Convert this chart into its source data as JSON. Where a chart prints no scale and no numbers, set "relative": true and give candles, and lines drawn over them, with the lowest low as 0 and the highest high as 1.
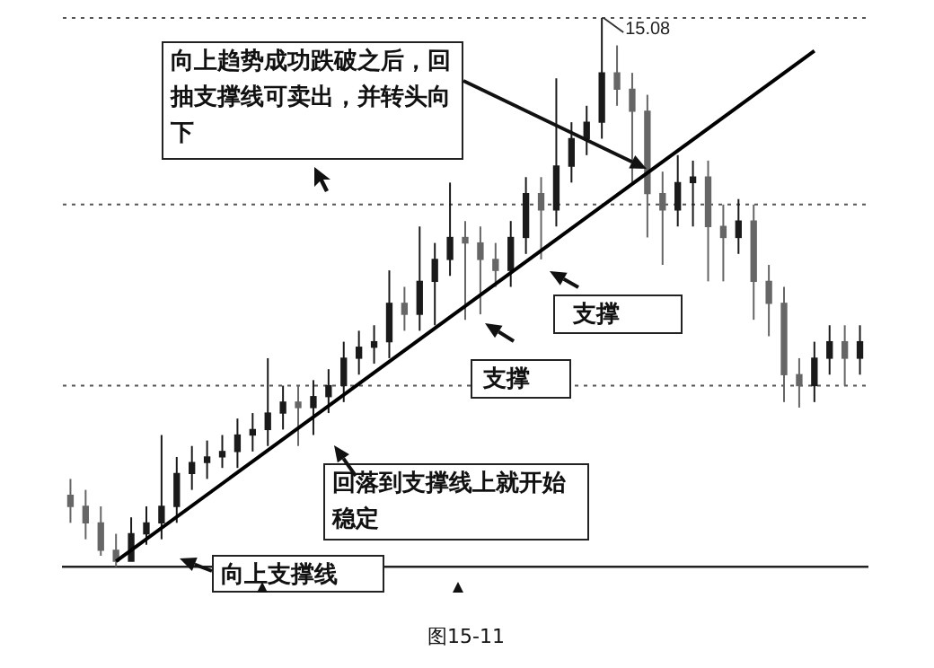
{
  "chart_data": {
    "type": "candlestick",
    "relative": true,
    "categories": [
      null,
      null,
      null,
      null,
      null,
      null,
      null,
      null,
      null,
      null,
      null,
      null,
      null,
      null,
      null,
      null,
      null,
      null,
      null,
      null,
      null,
      null,
      null,
      null,
      null,
      null,
      null,
      null,
      null,
      null,
      null,
      null,
      null,
      null,
      null,
      null,
      null,
      null,
      null,
      null,
      null,
      null,
      null,
      null,
      null,
      null,
      null,
      null,
      null,
      null,
      null,
      null,
      null
    ],
    "series": [
      {
        "colors": [
          "#666666",
          "#666666",
          "#666666",
          "#666666",
          "#1a1a1a",
          "#1a1a1a",
          "#1a1a1a",
          "#1a1a1a",
          "#1a1a1a",
          "#1a1a1a",
          "#1a1a1a",
          "#1a1a1a",
          "#1a1a1a",
          "#1a1a1a",
          "#1a1a1a",
          "#666666",
          "#1a1a1a",
          "#1a1a1a",
          "#1a1a1a",
          "#1a1a1a",
          "#1a1a1a",
          "#1a1a1a",
          "#666666",
          "#1a1a1a",
          "#1a1a1a",
          "#1a1a1a",
          "#666666",
          "#666666",
          "#666666",
          "#1a1a1a",
          "#1a1a1a",
          "#666666",
          "#1a1a1a",
          "#1a1a1a",
          "#1a1a1a",
          "#1a1a1a",
          "#666666",
          "#666666",
          "#666666",
          "#666666",
          "#1a1a1a",
          "#1a1a1a",
          "#666666",
          "#666666",
          "#1a1a1a",
          "#666666",
          "#666666",
          "#666666",
          "#666666",
          "#1a1a1a",
          "#1a1a1a",
          "#666666",
          "#1a1a1a"
        ],
        "ohlc": [
          [
            0.13,
            0.16,
            0.08,
            0.11
          ],
          [
            0.11,
            0.14,
            0.05,
            0.08
          ],
          [
            0.08,
            0.11,
            0.02,
            0.03
          ],
          [
            0.03,
            0.06,
            0,
            0.01
          ],
          [
            0.01,
            0.09,
            0.01,
            0.06
          ],
          [
            0.06,
            0.11,
            0.04,
            0.08
          ],
          [
            0.08,
            0.24,
            0.05,
            0.11
          ],
          [
            0.11,
            0.2,
            0.08,
            0.17
          ],
          [
            0.17,
            0.22,
            0.14,
            0.19
          ],
          [
            0.19,
            0.23,
            0.16,
            0.2
          ],
          [
            0.2,
            0.24,
            0.18,
            0.21
          ],
          [
            0.21,
            0.27,
            0.18,
            0.24
          ],
          [
            0.24,
            0.28,
            0.21,
            0.25
          ],
          [
            0.25,
            0.38,
            0.22,
            0.28
          ],
          [
            0.28,
            0.33,
            0.25,
            0.3
          ],
          [
            0.3,
            0.33,
            0.22,
            0.29
          ],
          [
            0.29,
            0.34,
            0.24,
            0.31
          ],
          [
            0.31,
            0.36,
            0.28,
            0.33
          ],
          [
            0.33,
            0.41,
            0.3,
            0.38
          ],
          [
            0.38,
            0.43,
            0.35,
            0.4
          ],
          [
            0.4,
            0.44,
            0.37,
            0.41
          ],
          [
            0.41,
            0.54,
            0.38,
            0.48
          ],
          [
            0.48,
            0.51,
            0.43,
            0.46
          ],
          [
            0.46,
            0.62,
            0.43,
            0.52
          ],
          [
            0.52,
            0.59,
            0.44,
            0.56
          ],
          [
            0.56,
            0.7,
            0.53,
            0.6
          ],
          [
            0.6,
            0.63,
            0.45,
            0.59
          ],
          [
            0.59,
            0.62,
            0.46,
            0.56
          ],
          [
            0.56,
            0.59,
            0.51,
            0.54
          ],
          [
            0.54,
            0.63,
            0.51,
            0.6
          ],
          [
            0.6,
            0.71,
            0.57,
            0.68
          ],
          [
            0.68,
            0.71,
            0.56,
            0.65
          ],
          [
            0.65,
            0.89,
            0.62,
            0.73
          ],
          [
            0.73,
            0.81,
            0.7,
            0.78
          ],
          [
            0.78,
            0.84,
            0.75,
            0.81
          ],
          [
            0.81,
            1,
            0.78,
            0.9
          ],
          [
            0.9,
            0.95,
            0.84,
            0.87
          ],
          [
            0.87,
            0.9,
            0.7,
            0.83
          ],
          [
            0.83,
            0.86,
            0.6,
            0.68
          ],
          [
            0.68,
            0.72,
            0.55,
            0.65
          ],
          [
            0.65,
            0.75,
            0.62,
            0.7
          ],
          [
            0.7,
            0.74,
            0.62,
            0.71
          ],
          [
            0.71,
            0.74,
            0.52,
            0.62
          ],
          [
            0.62,
            0.66,
            0.52,
            0.6
          ],
          [
            0.6,
            0.67,
            0.57,
            0.63
          ],
          [
            0.63,
            0.66,
            0.45,
            0.52
          ],
          [
            0.52,
            0.55,
            0.42,
            0.48
          ],
          [
            0.48,
            0.51,
            0.3,
            0.35
          ],
          [
            0.35,
            0.38,
            0.29,
            0.33
          ],
          [
            0.33,
            0.41,
            0.3,
            0.38
          ],
          [
            0.38,
            0.44,
            0.35,
            0.41
          ],
          [
            0.41,
            0.44,
            0.33,
            0.38
          ],
          [
            0.38,
            0.44,
            0.35,
            0.41
          ]
        ]
      },
      {
        "type": "line",
        "color": "#000000",
        "values": [
          null,
          null,
          null,
          0.01,
          null,
          null,
          null,
          null,
          null,
          null,
          null,
          null,
          null,
          null,
          null,
          null,
          null,
          null,
          null,
          null,
          null,
          null,
          null,
          null,
          null,
          null,
          null,
          null,
          null,
          null,
          null,
          null,
          null,
          null,
          null,
          null,
          null,
          null,
          null,
          null,
          null,
          null,
          null,
          null,
          null,
          null,
          null,
          null,
          null,
          0.94,
          null,
          null,
          null
        ]
      }
    ],
    "ref_lines": [
      {
        "axis": "y",
        "value": 1,
        "line_style": "dotted",
        "color": "#555555"
      },
      {
        "axis": "y",
        "value": 0.66,
        "line_style": "dotted",
        "color": "#555555"
      },
      {
        "axis": "y",
        "value": 0.33,
        "line_style": "dotted",
        "color": "#555555"
      }
    ],
    "annotations": [
      {
        "text": "15.08",
        "y": 1
      },
      "向上趋势成功跌破之后，回抽支撑线可卖出，并转头向下",
      "支撑",
      "支撑",
      "回落到支撑线上就开始稳定",
      "向上支撑线",
      "图15-11"
    ]
  }
}
